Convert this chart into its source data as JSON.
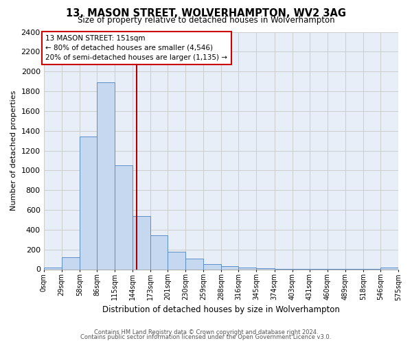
{
  "title": "13, MASON STREET, WOLVERHAMPTON, WV2 3AG",
  "subtitle": "Size of property relative to detached houses in Wolverhampton",
  "xlabel": "Distribution of detached houses by size in Wolverhampton",
  "ylabel": "Number of detached properties",
  "footer1": "Contains HM Land Registry data © Crown copyright and database right 2024.",
  "footer2": "Contains public sector information licensed under the Open Government Licence v3.0.",
  "annotation_title": "13 MASON STREET: 151sqm",
  "annotation_line1": "← 80% of detached houses are smaller (4,546)",
  "annotation_line2": "20% of semi-detached houses are larger (1,135) →",
  "property_size": 151,
  "bar_edges": [
    0,
    29,
    58,
    86,
    115,
    144,
    173,
    201,
    230,
    259,
    288,
    316,
    345,
    374,
    403,
    431,
    460,
    489,
    518,
    546,
    575
  ],
  "bar_heights": [
    15,
    120,
    1340,
    1890,
    1050,
    540,
    340,
    175,
    105,
    55,
    30,
    15,
    10,
    5,
    3,
    3,
    2,
    2,
    2,
    15
  ],
  "bar_color": "#c5d8f0",
  "bar_edge_color": "#5b8dc8",
  "vline_color": "#aa0000",
  "vline_x": 151,
  "annotation_box_color": "#cc0000",
  "ylim": [
    0,
    2400
  ],
  "yticks": [
    0,
    200,
    400,
    600,
    800,
    1000,
    1200,
    1400,
    1600,
    1800,
    2000,
    2200,
    2400
  ],
  "grid_color": "#cccccc",
  "bg_color": "#e8eef8",
  "tick_labels": [
    "0sqm",
    "29sqm",
    "58sqm",
    "86sqm",
    "115sqm",
    "144sqm",
    "173sqm",
    "201sqm",
    "230sqm",
    "259sqm",
    "288sqm",
    "316sqm",
    "345sqm",
    "374sqm",
    "403sqm",
    "431sqm",
    "460sqm",
    "489sqm",
    "518sqm",
    "546sqm",
    "575sqm"
  ]
}
